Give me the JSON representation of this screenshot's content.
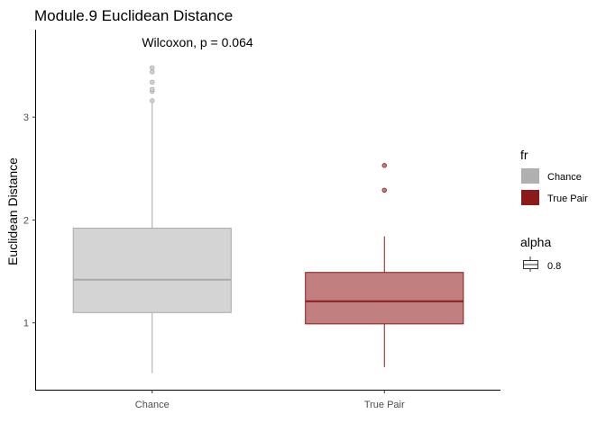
{
  "chart_data": {
    "type": "box",
    "title": "Module.9 Euclidean Distance",
    "annotation": "Wilcoxon, p = 0.064",
    "xlabel": "",
    "ylabel": "Euclidean Distance",
    "ylim": [
      0.35,
      3.85
    ],
    "yticks": [
      1,
      2,
      3
    ],
    "categories": [
      "Chance",
      "True Pair"
    ],
    "series": [
      {
        "name": "Chance",
        "min": 0.51,
        "q1": 1.1,
        "median": 1.42,
        "q3": 1.92,
        "max": 3.15,
        "outliers": [
          3.16,
          3.25,
          3.27,
          3.34,
          3.44,
          3.48
        ],
        "fill": "#d4d4d4",
        "line": "#a9a9a9"
      },
      {
        "name": "True Pair",
        "min": 0.57,
        "q1": 0.99,
        "median": 1.21,
        "q3": 1.49,
        "max": 1.84,
        "outliers": [
          2.29,
          2.53
        ],
        "fill": "#c17f7f",
        "line": "#8b1a1a"
      }
    ],
    "legend": {
      "fill_title": "fr",
      "fill_items": [
        {
          "label": "Chance",
          "color": "#b0b0b0"
        },
        {
          "label": "True Pair",
          "color": "#8b1a1a"
        }
      ],
      "alpha_title": "alpha",
      "alpha_items": [
        {
          "label": "0.8"
        }
      ]
    }
  }
}
